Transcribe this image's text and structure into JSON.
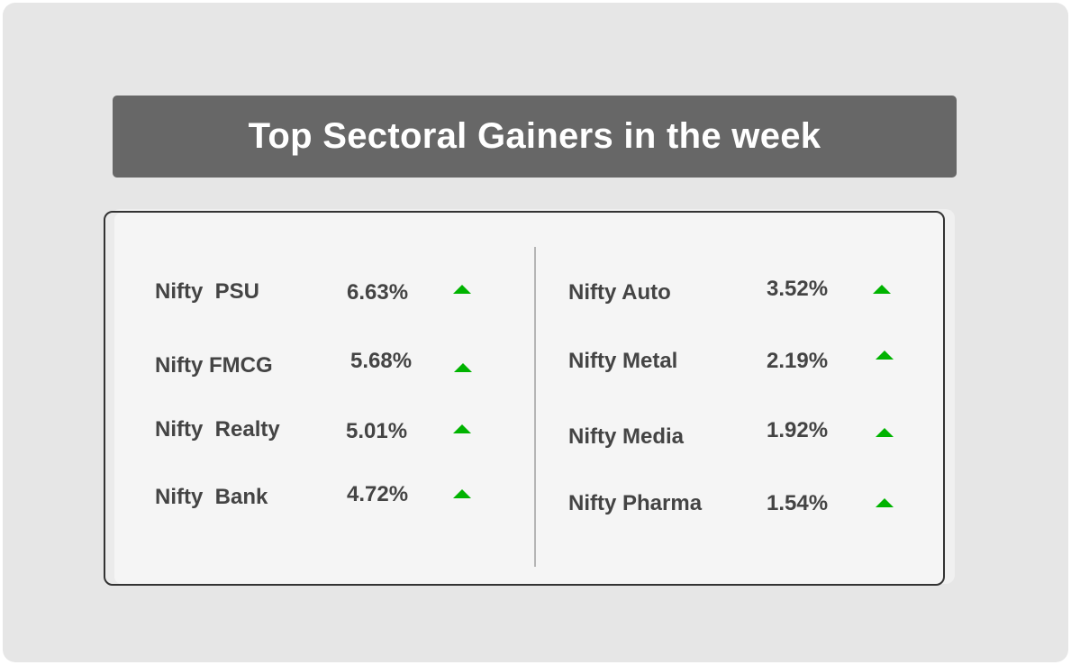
{
  "title": "Top Sectoral Gainers in the week",
  "colors": {
    "title_background": "#676767",
    "text": "#444444",
    "up_arrow": "#00b300"
  },
  "left_column": [
    {
      "name": "Nifty  PSU",
      "change": "6.63%",
      "direction": "up",
      "icon": "up-arrow-icon"
    },
    {
      "name": "Nifty FMCG",
      "change": "5.68%",
      "direction": "up",
      "icon": "up-arrow-icon"
    },
    {
      "name": "Nifty  Realty",
      "change": "5.01%",
      "direction": "up",
      "icon": "up-arrow-icon"
    },
    {
      "name": "Nifty  Bank",
      "change": "4.72%",
      "direction": "up",
      "icon": "up-arrow-icon"
    }
  ],
  "right_column": [
    {
      "name": "Nifty Auto",
      "change": "3.52%",
      "direction": "up",
      "icon": "up-arrow-icon"
    },
    {
      "name": "Nifty Metal",
      "change": "2.19%",
      "direction": "up",
      "icon": "up-arrow-icon"
    },
    {
      "name": "Nifty Media",
      "change": "1.92%",
      "direction": "up",
      "icon": "up-arrow-icon"
    },
    {
      "name": "Nifty Pharma",
      "change": "1.54%",
      "direction": "up",
      "icon": "up-arrow-icon"
    }
  ]
}
